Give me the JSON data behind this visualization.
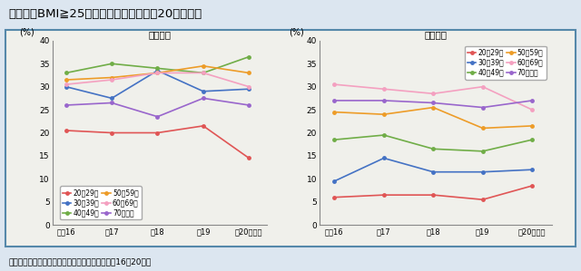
{
  "title": "肥満者（BMI≧25）の割合の年次推移（20歳以上）",
  "subtitle_note": "資料：厚生労働省「国民健康・栄養調査」（平成16～20年）",
  "x_labels": [
    "平成16",
    "年17",
    "年18",
    "年19",
    "年20（年）"
  ],
  "male_title": "「男性」",
  "female_title": "「女性」",
  "ylabel": "(%)",
  "ylim": [
    0,
    40
  ],
  "yticks": [
    0,
    5,
    10,
    15,
    20,
    25,
    30,
    35,
    40
  ],
  "legend_labels": [
    "20〜29歳",
    "30〜39歳",
    "40〜49歳",
    "50〜59歳",
    "60〜69歳",
    "70歳以上"
  ],
  "colors": [
    "#e05555",
    "#4472c4",
    "#70ad47",
    "#ed9c28",
    "#f4a0c0",
    "#9966cc"
  ],
  "male_data": {
    "20〜29歳": [
      20.5,
      20.0,
      20.0,
      21.5,
      14.5
    ],
    "30〜39歳": [
      30.0,
      27.5,
      33.5,
      29.0,
      29.5
    ],
    "40〜49歳": [
      33.0,
      35.0,
      34.0,
      33.0,
      36.5
    ],
    "50〜59歳": [
      31.5,
      32.0,
      33.0,
      34.5,
      33.0
    ],
    "60〜69歳": [
      30.5,
      31.5,
      33.0,
      33.0,
      30.0
    ],
    "70歳以上": [
      26.0,
      26.5,
      23.5,
      27.5,
      26.0
    ]
  },
  "female_data": {
    "20〜29歳": [
      6.0,
      6.5,
      6.5,
      5.5,
      8.5
    ],
    "30〜39歳": [
      9.5,
      14.5,
      11.5,
      11.5,
      12.0
    ],
    "40〜49歳": [
      18.5,
      19.5,
      16.5,
      16.0,
      18.5
    ],
    "50〜59歳": [
      24.5,
      24.0,
      25.5,
      21.0,
      21.5
    ],
    "60〜69歳": [
      30.5,
      29.5,
      28.5,
      30.0,
      25.0
    ],
    "70歳以上": [
      27.0,
      27.0,
      26.5,
      25.5,
      27.0
    ]
  },
  "background_color": "#dce6f0",
  "plot_bg_color": "#f0f0eb",
  "inner_bg": "#f0f0eb",
  "border_color": "#5588aa"
}
